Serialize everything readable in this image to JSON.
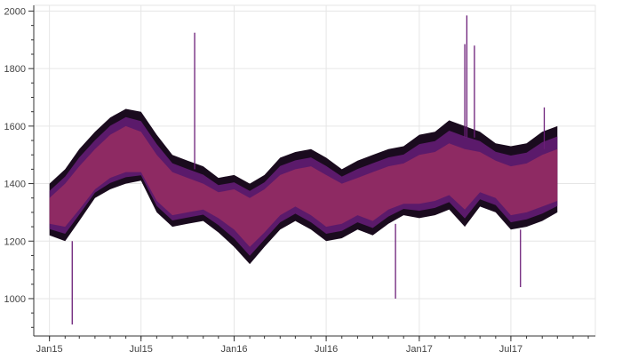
{
  "chart_data": {
    "type": "line",
    "title": "",
    "xlabel": "",
    "ylabel": "",
    "x_ticks": [
      {
        "label": "Jan15",
        "date": "2015-01-01"
      },
      {
        "label": "Jul15",
        "date": "2015-07-01"
      },
      {
        "label": "Jan16",
        "date": "2016-01-01"
      },
      {
        "label": "Jul16",
        "date": "2016-07-01"
      },
      {
        "label": "Jan17",
        "date": "2017-01-01"
      },
      {
        "label": "Jul17",
        "date": "2017-07-01"
      }
    ],
    "y_ticks": [
      1000,
      1200,
      1400,
      1600,
      1800,
      2000
    ],
    "xlim": [
      "2014-12-01",
      "2017-12-15"
    ],
    "ylim": [
      870,
      2020
    ],
    "grid": true,
    "envelope": {
      "x": [
        "2015-01-01",
        "2015-02-01",
        "2015-03-01",
        "2015-04-01",
        "2015-05-01",
        "2015-06-01",
        "2015-07-01",
        "2015-08-01",
        "2015-09-01",
        "2015-10-01",
        "2015-11-01",
        "2015-12-01",
        "2016-01-01",
        "2016-02-01",
        "2016-03-01",
        "2016-04-01",
        "2016-05-01",
        "2016-06-01",
        "2016-07-01",
        "2016-08-01",
        "2016-09-01",
        "2016-10-01",
        "2016-11-01",
        "2016-12-01",
        "2017-01-01",
        "2017-02-01",
        "2017-03-01",
        "2017-04-01",
        "2017-05-01",
        "2017-06-01",
        "2017-07-01",
        "2017-08-01",
        "2017-09-01",
        "2017-10-01"
      ],
      "upper": [
        1400,
        1450,
        1520,
        1580,
        1630,
        1660,
        1650,
        1570,
        1500,
        1480,
        1460,
        1420,
        1430,
        1400,
        1430,
        1490,
        1510,
        1520,
        1490,
        1450,
        1480,
        1500,
        1520,
        1530,
        1570,
        1580,
        1620,
        1600,
        1580,
        1540,
        1530,
        1540,
        1580,
        1600
      ],
      "lower": [
        1220,
        1200,
        1270,
        1350,
        1380,
        1400,
        1410,
        1300,
        1250,
        1260,
        1270,
        1230,
        1180,
        1120,
        1180,
        1240,
        1270,
        1240,
        1200,
        1210,
        1240,
        1220,
        1260,
        1290,
        1280,
        1290,
        1310,
        1250,
        1320,
        1300,
        1240,
        1250,
        1270,
        1300
      ],
      "core_upper": [
        1350,
        1400,
        1460,
        1520,
        1570,
        1600,
        1580,
        1500,
        1440,
        1420,
        1400,
        1370,
        1380,
        1350,
        1380,
        1430,
        1450,
        1460,
        1430,
        1400,
        1420,
        1440,
        1460,
        1470,
        1500,
        1510,
        1540,
        1520,
        1510,
        1480,
        1460,
        1470,
        1500,
        1520
      ],
      "core_lower": [
        1260,
        1250,
        1310,
        1380,
        1420,
        1440,
        1440,
        1340,
        1290,
        1300,
        1310,
        1280,
        1240,
        1180,
        1230,
        1290,
        1320,
        1290,
        1250,
        1260,
        1290,
        1270,
        1310,
        1330,
        1330,
        1340,
        1360,
        1310,
        1370,
        1350,
        1290,
        1300,
        1320,
        1340
      ]
    },
    "spikes": [
      {
        "x": "2015-02-15",
        "y0": 1200,
        "y1": 910
      },
      {
        "x": "2015-10-15",
        "y0": 1450,
        "y1": 1925
      },
      {
        "x": "2016-11-15",
        "y0": 1260,
        "y1": 1000
      },
      {
        "x": "2017-04-01",
        "y0": 1560,
        "y1": 1885
      },
      {
        "x": "2017-04-05",
        "y0": 1560,
        "y1": 1985
      },
      {
        "x": "2017-04-20",
        "y0": 1560,
        "y1": 1880
      },
      {
        "x": "2017-07-20",
        "y0": 1240,
        "y1": 1040
      },
      {
        "x": "2017-09-05",
        "y0": 1520,
        "y1": 1665
      }
    ],
    "colors": {
      "outer": "#1a0b1e",
      "mid": "#5b1a6b",
      "core": "#8e2a63",
      "spike": "#6b1e78",
      "grid": "#e6e6e6",
      "axis": "#333333"
    }
  }
}
